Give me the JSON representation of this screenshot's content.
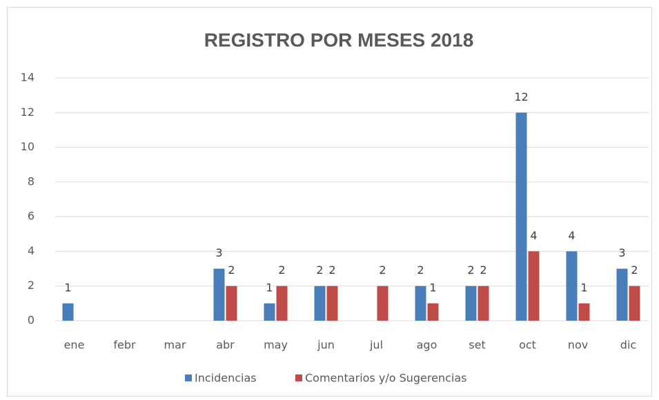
{
  "chart_data": {
    "type": "bar",
    "title": "REGISTRO POR MESES 2018",
    "categories": [
      "ene",
      "febr",
      "mar",
      "abr",
      "may",
      "jun",
      "jul",
      "ago",
      "set",
      "oct",
      "nov",
      "dic"
    ],
    "series": [
      {
        "name": "Incidencias",
        "color": "#4a7ebb",
        "values": [
          1,
          null,
          null,
          3,
          1,
          2,
          null,
          2,
          2,
          12,
          4,
          3
        ]
      },
      {
        "name": "Comentarios y/o Sugerencias",
        "color": "#be4b48",
        "values": [
          null,
          null,
          null,
          2,
          2,
          2,
          2,
          1,
          2,
          4,
          1,
          2
        ]
      }
    ],
    "ylim": [
      0,
      14
    ],
    "yticks": [
      0,
      2,
      4,
      6,
      8,
      10,
      12,
      14
    ],
    "grid": true,
    "legend": "bottom"
  }
}
